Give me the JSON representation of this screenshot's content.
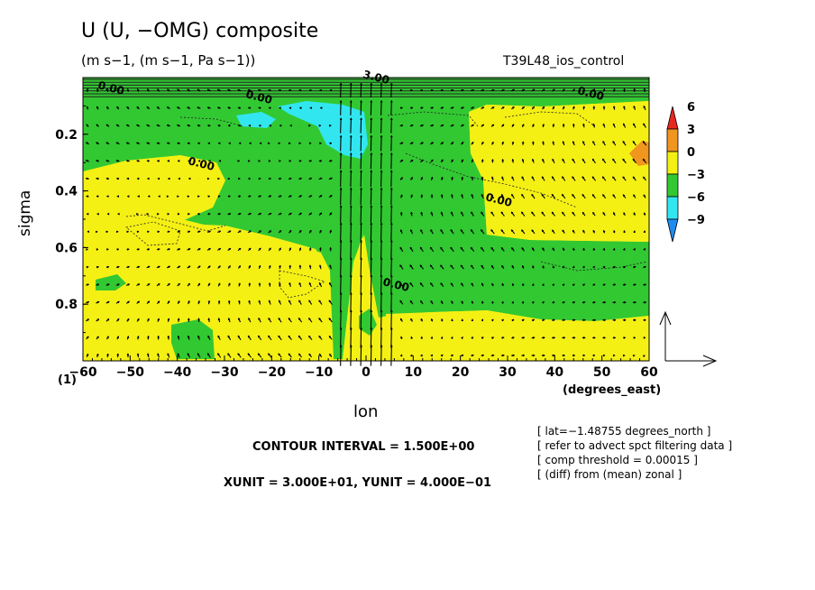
{
  "chart_data": {
    "type": "heatmap",
    "title": "U (U, −OMG) composite",
    "subtitle": "(m s−1, (m s−1, Pa s−1))",
    "run_name": "T39L48_ios_control",
    "xlabel": "lon",
    "xlabel_units": "(degrees_east)",
    "ylabel": "sigma",
    "panel_label": "(1)",
    "xlim": [
      -60,
      60
    ],
    "ylim": [
      1.0,
      0.0
    ],
    "x_ticks": [
      -60,
      -50,
      -40,
      -30,
      -20,
      -10,
      0,
      10,
      20,
      30,
      40,
      50,
      60
    ],
    "x_tick_labels": [
      "−60",
      "−50",
      "−40",
      "−30",
      "−20",
      "−10",
      "0",
      "10",
      "20",
      "30",
      "40",
      "50",
      "60"
    ],
    "y_ticks": [
      0.2,
      0.4,
      0.6,
      0.8
    ],
    "y_tick_labels": [
      "0.2",
      "0.4",
      "0.6",
      "0.8"
    ],
    "colorbar": {
      "labels": [
        "6",
        "3",
        "0",
        "−3",
        "−6",
        "−9"
      ],
      "bins": [
        {
          "range": [
            6,
            9
          ],
          "color": "#e8281e"
        },
        {
          "range": [
            3,
            6
          ],
          "color": "#f0961e"
        },
        {
          "range": [
            0,
            3
          ],
          "color": "#f5f014"
        },
        {
          "range": [
            -3,
            0
          ],
          "color": "#32c832"
        },
        {
          "range": [
            -6,
            -3
          ],
          "color": "#32e6f0"
        },
        {
          "range": [
            -9,
            -6
          ],
          "color": "#1e8cf0"
        }
      ]
    },
    "contour_interval": "CONTOUR INTERVAL = 1.500E+00",
    "contour_labels": [
      "0.00",
      "0.00",
      "0.00",
      "0.00",
      "0.00",
      "0.00",
      "3.00"
    ],
    "vector_units": "XUNIT = 3.000E+01, YUNIT = 4.000E−01",
    "grid": false,
    "notes": [
      "[ lat=−1.48755 degrees_north ]",
      "[ refer to advect spct filtering data ]",
      "[ comp threshold = 0.00015 ]",
      "[ (diff) from (mean) zonal ]"
    ]
  }
}
